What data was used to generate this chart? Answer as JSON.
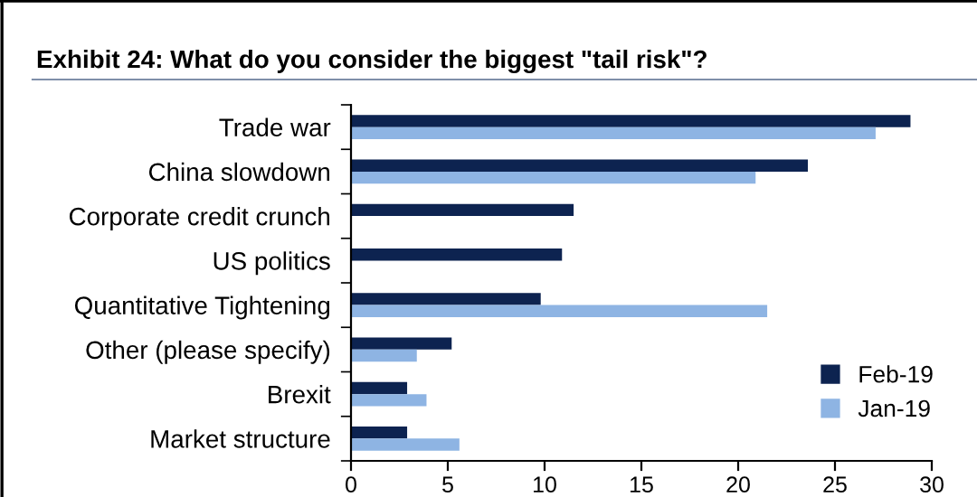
{
  "chart_data": {
    "type": "bar",
    "orientation": "horizontal",
    "title": "Exhibit 24: What do you consider the biggest \"tail risk\"?",
    "categories": [
      "Trade war",
      "China slowdown",
      "Corporate credit crunch",
      "US politics",
      "Quantitative Tightening",
      "Other (please specify)",
      "Brexit",
      "Market structure"
    ],
    "series": [
      {
        "name": "Feb-19",
        "color": "#0d2350",
        "values": [
          28.9,
          23.6,
          11.5,
          10.9,
          9.8,
          5.2,
          2.9,
          2.9
        ]
      },
      {
        "name": "Jan-19",
        "color": "#8eb4e3",
        "values": [
          27.1,
          20.9,
          null,
          null,
          21.5,
          3.4,
          3.9,
          5.6
        ]
      }
    ],
    "xlim": [
      0,
      30
    ],
    "xticks": [
      0,
      5,
      10,
      15,
      20,
      25,
      30
    ],
    "grid": false,
    "legend": "bottom right"
  }
}
